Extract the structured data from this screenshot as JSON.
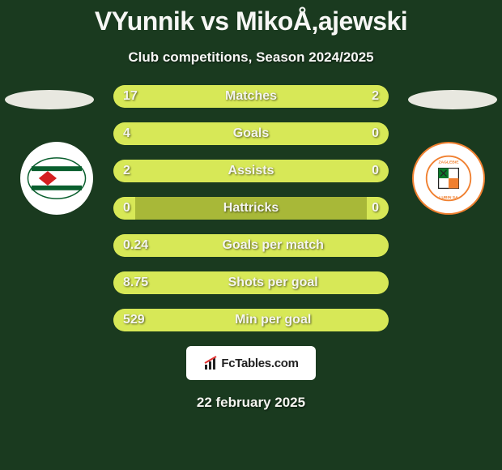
{
  "header": {
    "title": "VYunnik vs MikoÅ‚ajewski",
    "subtitle": "Club competitions, Season 2024/2025"
  },
  "colors": {
    "page_bg": "#1a3a1f",
    "bar_bg": "#a8b838",
    "bar_fill": "#d7e857",
    "text": "#f5f5f0"
  },
  "bars": [
    {
      "label": "Matches",
      "left_val": "17",
      "right_val": "2",
      "left_pct": 80,
      "right_pct": 20,
      "full": false
    },
    {
      "label": "Goals",
      "left_val": "4",
      "right_val": "0",
      "left_pct": 92,
      "right_pct": 8,
      "full": false
    },
    {
      "label": "Assists",
      "left_val": "2",
      "right_val": "0",
      "left_pct": 92,
      "right_pct": 8,
      "full": false
    },
    {
      "label": "Hattricks",
      "left_val": "0",
      "right_val": "0",
      "left_pct": 8,
      "right_pct": 8,
      "full": false
    },
    {
      "label": "Goals per match",
      "left_val": "0.24",
      "right_val": "",
      "left_pct": 100,
      "right_pct": 0,
      "full": true
    },
    {
      "label": "Shots per goal",
      "left_val": "8.75",
      "right_val": "",
      "left_pct": 100,
      "right_pct": 0,
      "full": true
    },
    {
      "label": "Min per goal",
      "left_val": "529",
      "right_val": "",
      "left_pct": 100,
      "right_pct": 0,
      "full": true
    }
  ],
  "brand": {
    "text": "FcTables.com"
  },
  "date": "22 february 2025",
  "left_team": {
    "name": "team-left"
  },
  "right_team": {
    "name": "team-right"
  }
}
